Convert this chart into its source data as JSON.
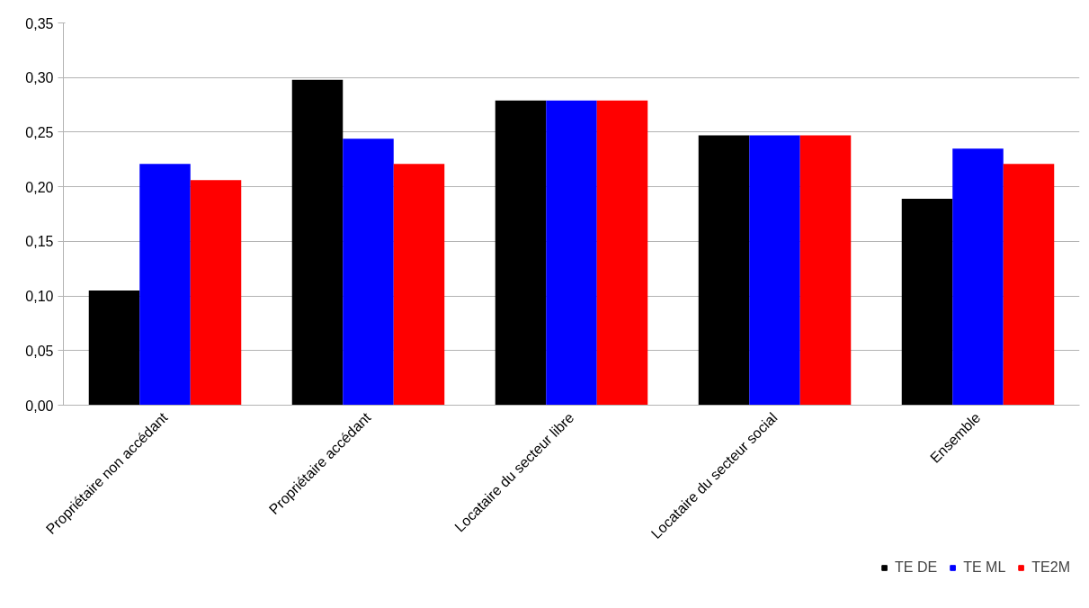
{
  "chart_data": {
    "type": "bar",
    "categories": [
      "Propriétaire non accédant",
      "Propriétaire accédant",
      "Locataire du secteur libre",
      "Locataire du secteur social",
      "Ensemble"
    ],
    "series": [
      {
        "name": "TE DE",
        "color": "#000000",
        "values": [
          0.105,
          0.298,
          0.279,
          0.247,
          0.189
        ]
      },
      {
        "name": "TE ML",
        "color": "#0000ff",
        "values": [
          0.221,
          0.244,
          0.279,
          0.247,
          0.235
        ]
      },
      {
        "name": "TE2M",
        "color": "#ff0000",
        "values": [
          0.206,
          0.221,
          0.279,
          0.247,
          0.221
        ]
      }
    ],
    "ylim": [
      0,
      0.35
    ],
    "yticks": [
      {
        "value": 0,
        "label": "0,00"
      },
      {
        "value": 0.05,
        "label": "0,05"
      },
      {
        "value": 0.1,
        "label": "0,10"
      },
      {
        "value": 0.15,
        "label": "0,15"
      },
      {
        "value": 0.2,
        "label": "0,20"
      },
      {
        "value": 0.25,
        "label": "0,25"
      },
      {
        "value": 0.3,
        "label": "0,30"
      },
      {
        "value": 0.35,
        "label": "0,35"
      }
    ],
    "grid": "y",
    "legend": "bottom right"
  }
}
